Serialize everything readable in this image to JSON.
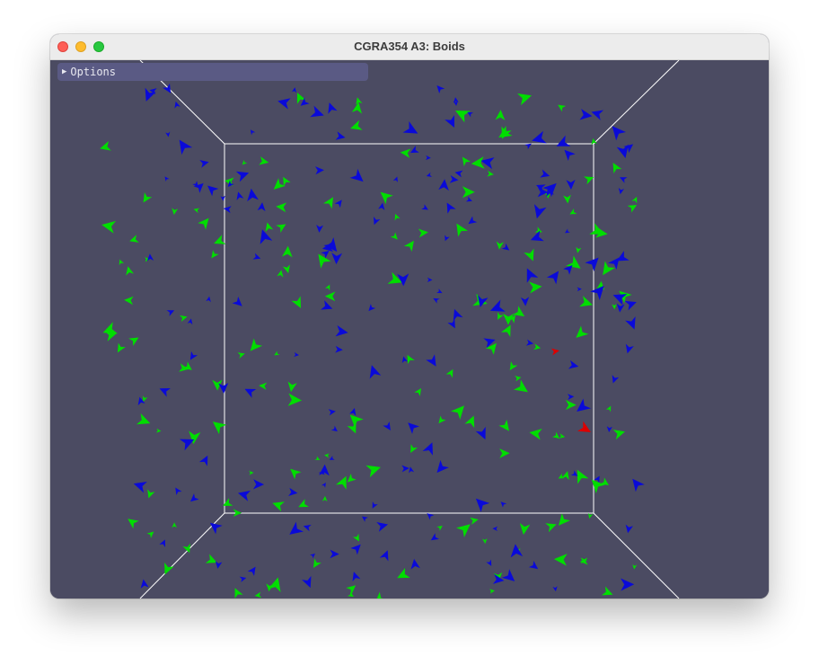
{
  "window": {
    "title": "CGRA354 A3: Boids"
  },
  "options_panel": {
    "label": "Options",
    "expanded": false,
    "arrow_icon": "triangle-right-icon"
  },
  "scene": {
    "background_color": "#4b4b62",
    "bounds_color": "#ffffff",
    "boid_colors": {
      "team_a": "#00dd00",
      "team_b": "#0a0ad8",
      "predator": "#dd0000"
    }
  }
}
